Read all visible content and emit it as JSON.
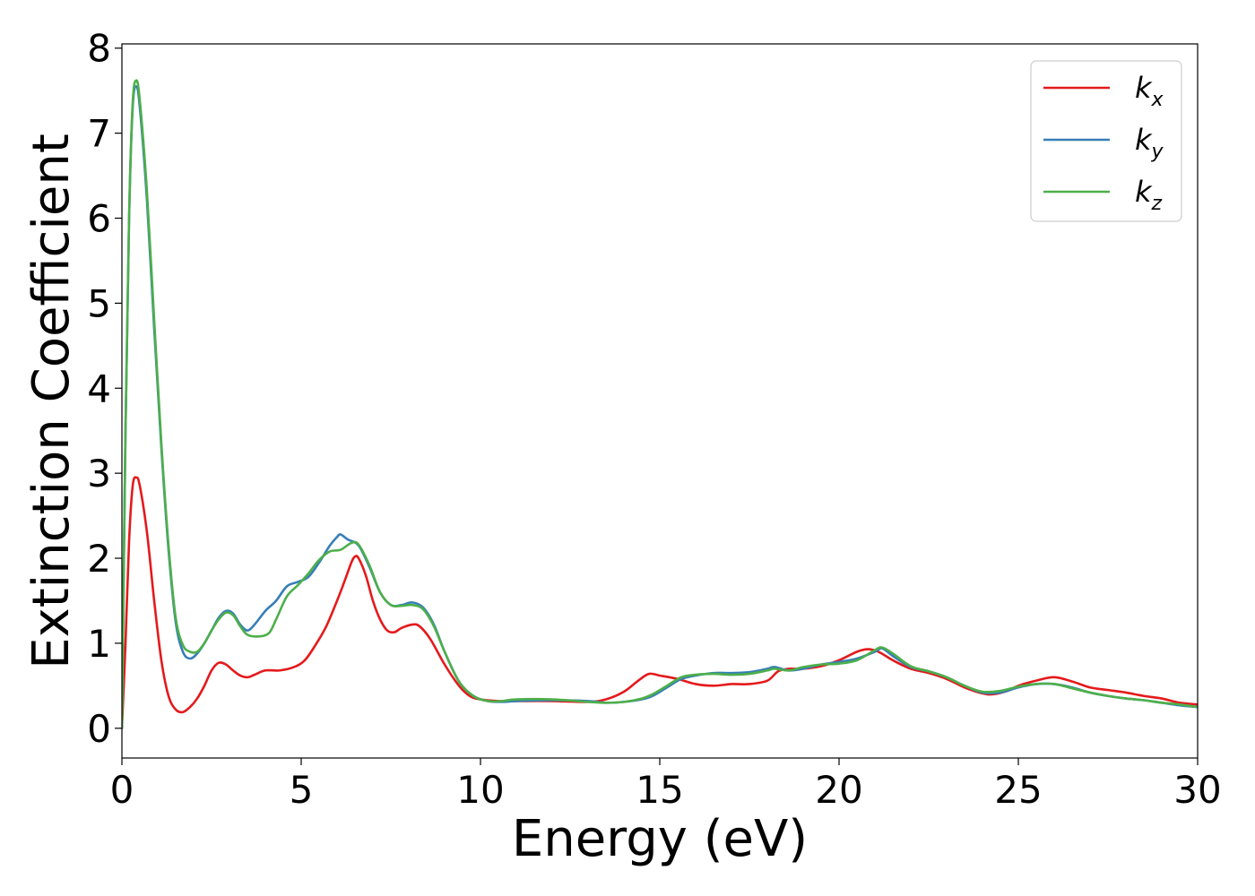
{
  "chart_data": {
    "type": "line",
    "title": "",
    "xlabel": "Energy (eV)",
    "ylabel": "Extinction Coefficient",
    "xlim": [
      0,
      30
    ],
    "ylim": [
      -0.35,
      8.05
    ],
    "xticks": [
      0,
      5,
      10,
      15,
      20,
      25,
      30
    ],
    "xtick_labels": [
      "0",
      "5",
      "10",
      "15",
      "20",
      "25",
      "30"
    ],
    "yticks": [
      0,
      1,
      2,
      3,
      4,
      5,
      6,
      7,
      8
    ],
    "ytick_labels": [
      "0",
      "1",
      "2",
      "3",
      "4",
      "5",
      "6",
      "7",
      "8"
    ],
    "grid": false,
    "legend_position": "top-right",
    "series": [
      {
        "name": "k",
        "subscript": "x",
        "color": "#e41a1c",
        "points": [
          [
            0,
            0
          ],
          [
            0.1,
            1.0
          ],
          [
            0.2,
            2.2
          ],
          [
            0.3,
            2.85
          ],
          [
            0.4,
            2.95
          ],
          [
            0.5,
            2.85
          ],
          [
            0.7,
            2.3
          ],
          [
            0.9,
            1.5
          ],
          [
            1.1,
            0.8
          ],
          [
            1.3,
            0.38
          ],
          [
            1.5,
            0.22
          ],
          [
            1.7,
            0.19
          ],
          [
            1.9,
            0.25
          ],
          [
            2.1,
            0.35
          ],
          [
            2.3,
            0.5
          ],
          [
            2.5,
            0.68
          ],
          [
            2.7,
            0.77
          ],
          [
            2.9,
            0.75
          ],
          [
            3.1,
            0.68
          ],
          [
            3.3,
            0.62
          ],
          [
            3.5,
            0.6
          ],
          [
            3.7,
            0.63
          ],
          [
            4.0,
            0.68
          ],
          [
            4.4,
            0.68
          ],
          [
            4.8,
            0.72
          ],
          [
            5.1,
            0.8
          ],
          [
            5.4,
            0.98
          ],
          [
            5.7,
            1.2
          ],
          [
            6.0,
            1.5
          ],
          [
            6.2,
            1.72
          ],
          [
            6.4,
            1.95
          ],
          [
            6.5,
            2.02
          ],
          [
            6.6,
            2.0
          ],
          [
            6.8,
            1.8
          ],
          [
            7.0,
            1.5
          ],
          [
            7.2,
            1.28
          ],
          [
            7.4,
            1.15
          ],
          [
            7.6,
            1.13
          ],
          [
            7.8,
            1.18
          ],
          [
            8.1,
            1.22
          ],
          [
            8.3,
            1.2
          ],
          [
            8.6,
            1.05
          ],
          [
            9.0,
            0.75
          ],
          [
            9.4,
            0.5
          ],
          [
            9.7,
            0.38
          ],
          [
            10.0,
            0.34
          ],
          [
            10.5,
            0.32
          ],
          [
            11.0,
            0.32
          ],
          [
            12.0,
            0.32
          ],
          [
            13.0,
            0.31
          ],
          [
            13.5,
            0.34
          ],
          [
            14.0,
            0.43
          ],
          [
            14.4,
            0.56
          ],
          [
            14.7,
            0.64
          ],
          [
            15.0,
            0.62
          ],
          [
            15.5,
            0.58
          ],
          [
            16.0,
            0.52
          ],
          [
            16.5,
            0.5
          ],
          [
            17.0,
            0.52
          ],
          [
            17.5,
            0.52
          ],
          [
            18.0,
            0.56
          ],
          [
            18.3,
            0.67
          ],
          [
            18.6,
            0.7
          ],
          [
            19.0,
            0.7
          ],
          [
            19.5,
            0.73
          ],
          [
            20.0,
            0.8
          ],
          [
            20.5,
            0.9
          ],
          [
            20.8,
            0.93
          ],
          [
            21.1,
            0.9
          ],
          [
            21.5,
            0.8
          ],
          [
            22.0,
            0.7
          ],
          [
            22.5,
            0.65
          ],
          [
            23.0,
            0.58
          ],
          [
            23.5,
            0.48
          ],
          [
            24.0,
            0.41
          ],
          [
            24.3,
            0.4
          ],
          [
            24.7,
            0.44
          ],
          [
            25.0,
            0.5
          ],
          [
            25.5,
            0.56
          ],
          [
            26.0,
            0.6
          ],
          [
            26.5,
            0.55
          ],
          [
            27.0,
            0.48
          ],
          [
            27.5,
            0.45
          ],
          [
            28.0,
            0.42
          ],
          [
            28.5,
            0.38
          ],
          [
            29.0,
            0.35
          ],
          [
            29.5,
            0.3
          ],
          [
            30.0,
            0.28
          ]
        ]
      },
      {
        "name": "k",
        "subscript": "y",
        "color": "#377eb8",
        "points": [
          [
            0,
            0
          ],
          [
            0.1,
            3.5
          ],
          [
            0.2,
            6.0
          ],
          [
            0.3,
            7.3
          ],
          [
            0.4,
            7.55
          ],
          [
            0.5,
            7.3
          ],
          [
            0.7,
            6.2
          ],
          [
            0.9,
            4.7
          ],
          [
            1.1,
            3.3
          ],
          [
            1.3,
            2.1
          ],
          [
            1.5,
            1.25
          ],
          [
            1.7,
            0.9
          ],
          [
            1.9,
            0.82
          ],
          [
            2.1,
            0.88
          ],
          [
            2.3,
            1.0
          ],
          [
            2.5,
            1.15
          ],
          [
            2.7,
            1.3
          ],
          [
            2.9,
            1.38
          ],
          [
            3.1,
            1.35
          ],
          [
            3.3,
            1.22
          ],
          [
            3.5,
            1.15
          ],
          [
            3.7,
            1.22
          ],
          [
            4.0,
            1.38
          ],
          [
            4.3,
            1.5
          ],
          [
            4.6,
            1.67
          ],
          [
            4.9,
            1.72
          ],
          [
            5.2,
            1.78
          ],
          [
            5.5,
            1.95
          ],
          [
            5.8,
            2.15
          ],
          [
            6.0,
            2.25
          ],
          [
            6.1,
            2.28
          ],
          [
            6.3,
            2.22
          ],
          [
            6.6,
            2.15
          ],
          [
            6.9,
            1.9
          ],
          [
            7.2,
            1.6
          ],
          [
            7.5,
            1.45
          ],
          [
            7.8,
            1.45
          ],
          [
            8.1,
            1.48
          ],
          [
            8.4,
            1.42
          ],
          [
            8.7,
            1.22
          ],
          [
            9.0,
            0.9
          ],
          [
            9.4,
            0.55
          ],
          [
            9.8,
            0.38
          ],
          [
            10.2,
            0.32
          ],
          [
            10.6,
            0.31
          ],
          [
            11.0,
            0.32
          ],
          [
            12.0,
            0.33
          ],
          [
            13.0,
            0.32
          ],
          [
            13.5,
            0.3
          ],
          [
            14.0,
            0.31
          ],
          [
            14.5,
            0.34
          ],
          [
            14.8,
            0.38
          ],
          [
            15.2,
            0.48
          ],
          [
            15.6,
            0.58
          ],
          [
            16.0,
            0.62
          ],
          [
            16.5,
            0.65
          ],
          [
            17.0,
            0.65
          ],
          [
            17.5,
            0.66
          ],
          [
            18.0,
            0.7
          ],
          [
            18.2,
            0.72
          ],
          [
            18.6,
            0.68
          ],
          [
            19.0,
            0.7
          ],
          [
            19.5,
            0.75
          ],
          [
            20.0,
            0.78
          ],
          [
            20.5,
            0.82
          ],
          [
            21.0,
            0.9
          ],
          [
            21.2,
            0.94
          ],
          [
            21.5,
            0.85
          ],
          [
            22.0,
            0.72
          ],
          [
            22.5,
            0.67
          ],
          [
            23.0,
            0.6
          ],
          [
            23.5,
            0.5
          ],
          [
            24.0,
            0.42
          ],
          [
            24.5,
            0.42
          ],
          [
            25.0,
            0.48
          ],
          [
            25.5,
            0.52
          ],
          [
            26.0,
            0.52
          ],
          [
            26.5,
            0.48
          ],
          [
            27.0,
            0.42
          ],
          [
            27.5,
            0.38
          ],
          [
            28.0,
            0.35
          ],
          [
            28.5,
            0.33
          ],
          [
            29.0,
            0.3
          ],
          [
            29.5,
            0.27
          ],
          [
            30.0,
            0.25
          ]
        ]
      },
      {
        "name": "k",
        "subscript": "z",
        "color": "#4daf4a",
        "points": [
          [
            0,
            0
          ],
          [
            0.1,
            3.5
          ],
          [
            0.2,
            6.0
          ],
          [
            0.3,
            7.35
          ],
          [
            0.4,
            7.62
          ],
          [
            0.5,
            7.38
          ],
          [
            0.7,
            6.3
          ],
          [
            0.9,
            4.8
          ],
          [
            1.1,
            3.35
          ],
          [
            1.3,
            2.15
          ],
          [
            1.5,
            1.3
          ],
          [
            1.7,
            0.98
          ],
          [
            1.9,
            0.9
          ],
          [
            2.1,
            0.9
          ],
          [
            2.3,
            1.0
          ],
          [
            2.5,
            1.15
          ],
          [
            2.7,
            1.28
          ],
          [
            2.9,
            1.36
          ],
          [
            3.1,
            1.33
          ],
          [
            3.3,
            1.2
          ],
          [
            3.5,
            1.1
          ],
          [
            3.8,
            1.08
          ],
          [
            4.1,
            1.12
          ],
          [
            4.3,
            1.28
          ],
          [
            4.6,
            1.55
          ],
          [
            4.9,
            1.68
          ],
          [
            5.2,
            1.82
          ],
          [
            5.5,
            1.98
          ],
          [
            5.8,
            2.08
          ],
          [
            6.1,
            2.1
          ],
          [
            6.4,
            2.18
          ],
          [
            6.6,
            2.16
          ],
          [
            6.9,
            1.92
          ],
          [
            7.2,
            1.6
          ],
          [
            7.5,
            1.45
          ],
          [
            7.8,
            1.44
          ],
          [
            8.1,
            1.45
          ],
          [
            8.4,
            1.4
          ],
          [
            8.7,
            1.2
          ],
          [
            9.0,
            0.9
          ],
          [
            9.4,
            0.55
          ],
          [
            9.8,
            0.38
          ],
          [
            10.2,
            0.32
          ],
          [
            10.6,
            0.32
          ],
          [
            11.0,
            0.34
          ],
          [
            12.0,
            0.34
          ],
          [
            13.0,
            0.31
          ],
          [
            13.5,
            0.3
          ],
          [
            14.0,
            0.31
          ],
          [
            14.5,
            0.35
          ],
          [
            14.8,
            0.4
          ],
          [
            15.2,
            0.5
          ],
          [
            15.6,
            0.6
          ],
          [
            16.0,
            0.63
          ],
          [
            16.5,
            0.64
          ],
          [
            17.0,
            0.63
          ],
          [
            17.5,
            0.64
          ],
          [
            18.0,
            0.68
          ],
          [
            18.2,
            0.7
          ],
          [
            18.6,
            0.68
          ],
          [
            19.0,
            0.72
          ],
          [
            19.5,
            0.75
          ],
          [
            20.0,
            0.76
          ],
          [
            20.5,
            0.8
          ],
          [
            21.0,
            0.92
          ],
          [
            21.2,
            0.95
          ],
          [
            21.5,
            0.88
          ],
          [
            22.0,
            0.73
          ],
          [
            22.5,
            0.67
          ],
          [
            23.0,
            0.6
          ],
          [
            23.5,
            0.5
          ],
          [
            24.0,
            0.43
          ],
          [
            24.5,
            0.44
          ],
          [
            25.0,
            0.49
          ],
          [
            25.5,
            0.52
          ],
          [
            26.0,
            0.52
          ],
          [
            26.5,
            0.47
          ],
          [
            27.0,
            0.42
          ],
          [
            27.5,
            0.38
          ],
          [
            28.0,
            0.35
          ],
          [
            28.5,
            0.33
          ],
          [
            29.0,
            0.3
          ],
          [
            29.5,
            0.28
          ],
          [
            30.0,
            0.25
          ]
        ]
      }
    ]
  }
}
